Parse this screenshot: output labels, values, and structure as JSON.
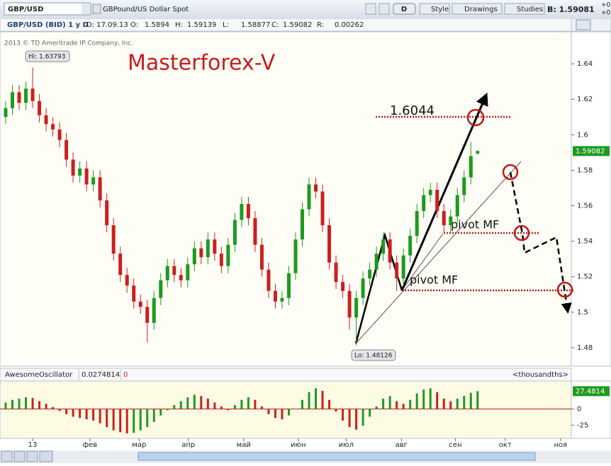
{
  "toolbar": {
    "symbol": "GBP/USD",
    "description": "GBPound/US Dollar Spot",
    "period_button": "D",
    "buttons": [
      "Style",
      "Drawings",
      "Studies"
    ],
    "bid": "B: 1.59081",
    "change_top": "+0.",
    "change_bottom": "+0"
  },
  "info_bar": {
    "instrument": "GBP/USD (BID) 1 y D",
    "date": "D: 17.09.13",
    "open_label": "O:",
    "open": "1.5894",
    "high_label": "H:",
    "high": "1.59139",
    "low_label": "L:",
    "low": "1.58877",
    "close_label": "C:",
    "close": "1.59082",
    "range_label": "R:",
    "range": "0.00262"
  },
  "copyright": "2013 © TD Ameritrade IP Company, Inc.",
  "chart_data": [
    {
      "type": "candlestick",
      "x": [
        0,
        1,
        2,
        3,
        4,
        5,
        6,
        7,
        8,
        9,
        10,
        11,
        12,
        13,
        14,
        15,
        16,
        17,
        18,
        19,
        20,
        21,
        22,
        23,
        24,
        25,
        26,
        27,
        28,
        29,
        30,
        31,
        32,
        33,
        34,
        35,
        36,
        37,
        38,
        39,
        40,
        41,
        42,
        43,
        44,
        45,
        46,
        47,
        48,
        49,
        50,
        51,
        52,
        53,
        54,
        55,
        56,
        57,
        58,
        59,
        60,
        61,
        62,
        63,
        64,
        65,
        66,
        67,
        68,
        69,
        70
      ],
      "open": [
        1.61,
        1.615,
        1.624,
        1.618,
        1.626,
        1.619,
        1.611,
        1.606,
        1.603,
        1.597,
        1.586,
        1.577,
        1.581,
        1.572,
        1.576,
        1.563,
        1.549,
        1.533,
        1.521,
        1.515,
        1.506,
        1.503,
        1.494,
        1.508,
        1.518,
        1.526,
        1.521,
        1.518,
        1.527,
        1.536,
        1.531,
        1.541,
        1.533,
        1.526,
        1.538,
        1.552,
        1.561,
        1.553,
        1.538,
        1.524,
        1.512,
        1.506,
        1.508,
        1.522,
        1.541,
        1.558,
        1.572,
        1.568,
        1.549,
        1.528,
        1.517,
        1.512,
        1.497,
        1.508,
        1.519,
        1.524,
        1.533,
        1.541,
        1.528,
        1.519,
        1.532,
        1.543,
        1.557,
        1.566,
        1.569,
        1.557,
        1.549,
        1.554,
        1.566,
        1.576,
        1.5894
      ],
      "high": [
        1.619,
        1.628,
        1.628,
        1.63,
        1.63793,
        1.623,
        1.615,
        1.61,
        1.607,
        1.601,
        1.59,
        1.585,
        1.585,
        1.58,
        1.58,
        1.567,
        1.553,
        1.537,
        1.525,
        1.519,
        1.51,
        1.507,
        1.512,
        1.522,
        1.53,
        1.53,
        1.525,
        1.531,
        1.54,
        1.54,
        1.545,
        1.545,
        1.537,
        1.542,
        1.556,
        1.565,
        1.565,
        1.557,
        1.542,
        1.528,
        1.516,
        1.512,
        1.526,
        1.545,
        1.562,
        1.576,
        1.576,
        1.572,
        1.553,
        1.532,
        1.521,
        1.516,
        1.512,
        1.523,
        1.528,
        1.537,
        1.545,
        1.545,
        1.532,
        1.536,
        1.547,
        1.561,
        1.57,
        1.573,
        1.573,
        1.561,
        1.558,
        1.57,
        1.58,
        1.596,
        1.59139
      ],
      "low": [
        1.606,
        1.611,
        1.614,
        1.614,
        1.615,
        1.607,
        1.602,
        1.599,
        1.593,
        1.582,
        1.573,
        1.573,
        1.568,
        1.568,
        1.559,
        1.545,
        1.529,
        1.517,
        1.511,
        1.502,
        1.499,
        1.483,
        1.49,
        1.504,
        1.514,
        1.517,
        1.514,
        1.514,
        1.523,
        1.527,
        1.527,
        1.529,
        1.522,
        1.522,
        1.534,
        1.548,
        1.549,
        1.534,
        1.52,
        1.508,
        1.502,
        1.502,
        1.504,
        1.518,
        1.537,
        1.554,
        1.564,
        1.545,
        1.524,
        1.513,
        1.508,
        1.49,
        1.48126,
        1.504,
        1.515,
        1.52,
        1.529,
        1.524,
        1.512,
        1.515,
        1.528,
        1.539,
        1.553,
        1.562,
        1.553,
        1.545,
        1.545,
        1.55,
        1.562,
        1.572,
        1.58877
      ],
      "close": [
        1.615,
        1.624,
        1.618,
        1.626,
        1.619,
        1.611,
        1.606,
        1.603,
        1.597,
        1.586,
        1.577,
        1.581,
        1.572,
        1.576,
        1.563,
        1.549,
        1.533,
        1.521,
        1.515,
        1.506,
        1.503,
        1.494,
        1.508,
        1.518,
        1.526,
        1.521,
        1.518,
        1.527,
        1.536,
        1.531,
        1.541,
        1.533,
        1.526,
        1.538,
        1.552,
        1.561,
        1.553,
        1.538,
        1.524,
        1.512,
        1.506,
        1.508,
        1.522,
        1.541,
        1.558,
        1.572,
        1.568,
        1.549,
        1.528,
        1.517,
        1.512,
        1.497,
        1.508,
        1.519,
        1.524,
        1.533,
        1.541,
        1.528,
        1.519,
        1.532,
        1.543,
        1.557,
        1.566,
        1.569,
        1.557,
        1.549,
        1.554,
        1.566,
        1.576,
        1.588,
        1.59082
      ],
      "colors": {
        "up": "#1e9a1e",
        "down": "#cc1f1f"
      },
      "xlim": [
        -0.84,
        83.9
      ],
      "xticks": [
        {
          "value": 4.0,
          "label": "13"
        },
        {
          "value": 12.5,
          "label": "фев"
        },
        {
          "value": 19.8,
          "label": "мар"
        },
        {
          "value": 27.1,
          "label": "апр"
        },
        {
          "value": 35.3,
          "label": "май"
        },
        {
          "value": 43.4,
          "label": "июн"
        },
        {
          "value": 50.5,
          "label": "июл"
        },
        {
          "value": 58.7,
          "label": "авг"
        },
        {
          "value": 66.7,
          "label": "сен"
        },
        {
          "value": 74.1,
          "label": "окт"
        },
        {
          "value": 82.3,
          "label": "ноя"
        }
      ],
      "ylim": [
        1.4696,
        1.658
      ],
      "yticks": [
        1.48,
        1.5,
        1.52,
        1.54,
        1.56,
        1.58,
        1.6,
        1.62,
        1.64
      ],
      "last_price": 1.59082,
      "annotations": {
        "high": "Hi: 1.63793",
        "low": "Lo: 1.48126",
        "watermark": "Masterforex-V",
        "target": "1.6044",
        "pivot_upper": "pivot MF",
        "pivot_lower": "pivot MF"
      }
    },
    {
      "type": "histogram",
      "title": "AwesomeOscillator",
      "header_value": "0.0274814",
      "header_flag": "0",
      "unit": "<thousandths>",
      "values": [
        10,
        14,
        16,
        18,
        17,
        12,
        8,
        3,
        -3,
        -8,
        -12,
        -14,
        -16,
        -18,
        -22,
        -28,
        -33,
        -36,
        -38,
        -37,
        -33,
        -28,
        -20,
        -10,
        -2,
        6,
        12,
        18,
        22,
        20,
        16,
        10,
        4,
        -2,
        6,
        14,
        18,
        14,
        4,
        -8,
        -14,
        -16,
        -10,
        0,
        14,
        26,
        32,
        28,
        14,
        -4,
        -18,
        -28,
        -32,
        -26,
        -12,
        4,
        16,
        20,
        12,
        8,
        14,
        24,
        30,
        32,
        26,
        16,
        12,
        16,
        20,
        25,
        27.4814
      ],
      "colors": {
        "up": "#1e9a1e",
        "down": "#cc1f1f"
      },
      "ylim": [
        -45.5,
        43.2
      ],
      "yticks": [
        0,
        -25
      ],
      "last_value": 27.4814
    }
  ]
}
